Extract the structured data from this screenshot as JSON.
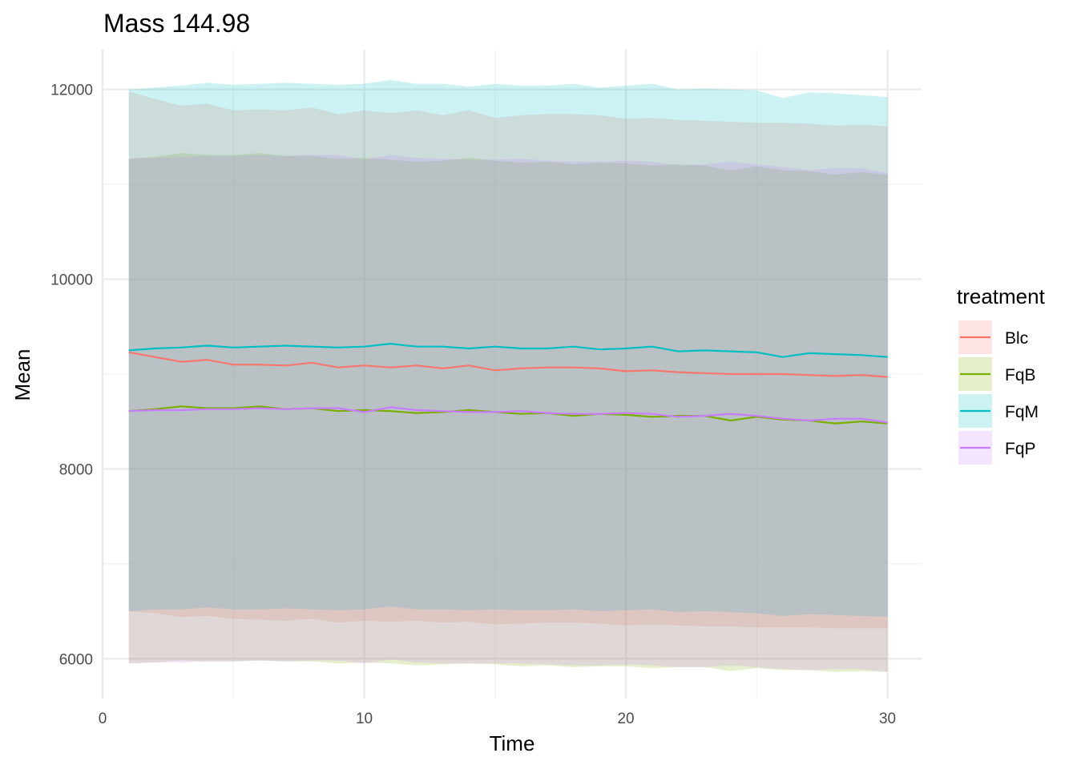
{
  "chart_data": {
    "type": "line",
    "title": "Mass 144.98",
    "xlabel": "Time",
    "ylabel": "Mean",
    "xlim": [
      0,
      31.3
    ],
    "ylim": [
      5580,
      12420
    ],
    "x_ticks": [
      0,
      10,
      20,
      30
    ],
    "y_ticks": [
      6000,
      8000,
      10000,
      12000
    ],
    "grid": true,
    "legend": {
      "title": "treatment",
      "placement": "right"
    },
    "x": [
      1,
      2,
      3,
      4,
      5,
      6,
      7,
      8,
      9,
      10,
      11,
      12,
      13,
      14,
      15,
      16,
      17,
      18,
      19,
      20,
      21,
      22,
      23,
      24,
      25,
      26,
      27,
      28,
      29,
      30
    ],
    "series": [
      {
        "name": "Blc",
        "color": "#f8766d",
        "values": [
          9230,
          9180,
          9130,
          9150,
          9100,
          9100,
          9090,
          9120,
          9070,
          9090,
          9070,
          9090,
          9060,
          9090,
          9040,
          9060,
          9070,
          9070,
          9060,
          9030,
          9040,
          9020,
          9010,
          9000,
          9000,
          9000,
          8990,
          8980,
          8990,
          8970
        ],
        "lower": [
          6500,
          6480,
          6440,
          6450,
          6420,
          6410,
          6400,
          6420,
          6380,
          6400,
          6390,
          6400,
          6380,
          6390,
          6360,
          6370,
          6380,
          6380,
          6370,
          6350,
          6360,
          6350,
          6340,
          6340,
          6330,
          6330,
          6330,
          6320,
          6320,
          6320
        ],
        "upper": [
          11980,
          11900,
          11830,
          11850,
          11780,
          11790,
          11780,
          11810,
          11740,
          11780,
          11750,
          11780,
          11730,
          11780,
          11700,
          11730,
          11740,
          11740,
          11730,
          11690,
          11700,
          11680,
          11670,
          11660,
          11650,
          11650,
          11640,
          11620,
          11630,
          11610
        ]
      },
      {
        "name": "FqB",
        "color": "#7cae00",
        "values": [
          8610,
          8630,
          8660,
          8640,
          8640,
          8660,
          8630,
          8640,
          8610,
          8620,
          8610,
          8590,
          8600,
          8620,
          8600,
          8580,
          8590,
          8560,
          8580,
          8570,
          8550,
          8560,
          8560,
          8510,
          8550,
          8520,
          8510,
          8480,
          8500,
          8480
        ],
        "lower": [
          5950,
          5960,
          5980,
          5970,
          5970,
          5980,
          5970,
          5970,
          5950,
          5960,
          5950,
          5930,
          5940,
          5950,
          5940,
          5920,
          5930,
          5910,
          5920,
          5920,
          5900,
          5910,
          5910,
          5870,
          5900,
          5880,
          5880,
          5860,
          5870,
          5860
        ],
        "upper": [
          11270,
          11290,
          11330,
          11310,
          11310,
          11330,
          11300,
          11300,
          11270,
          11280,
          11260,
          11240,
          11250,
          11280,
          11250,
          11230,
          11240,
          11210,
          11230,
          11220,
          11200,
          11210,
          11200,
          11150,
          11190,
          11150,
          11140,
          11100,
          11130,
          11100
        ]
      },
      {
        "name": "FqM",
        "color": "#00bfc4",
        "values": [
          9250,
          9270,
          9280,
          9300,
          9280,
          9290,
          9300,
          9290,
          9280,
          9290,
          9320,
          9290,
          9290,
          9270,
          9290,
          9270,
          9270,
          9290,
          9260,
          9270,
          9290,
          9240,
          9250,
          9240,
          9230,
          9180,
          9220,
          9210,
          9200,
          9180
        ],
        "lower": [
          6500,
          6520,
          6520,
          6540,
          6520,
          6520,
          6530,
          6520,
          6510,
          6520,
          6550,
          6520,
          6520,
          6510,
          6520,
          6510,
          6510,
          6520,
          6500,
          6510,
          6520,
          6490,
          6500,
          6490,
          6480,
          6450,
          6470,
          6460,
          6450,
          6440
        ],
        "upper": [
          12000,
          12020,
          12040,
          12070,
          12050,
          12060,
          12070,
          12060,
          12050,
          12060,
          12100,
          12060,
          12060,
          12030,
          12060,
          12040,
          12040,
          12060,
          12020,
          12040,
          12060,
          12000,
          12010,
          12000,
          11990,
          11910,
          11970,
          11960,
          11940,
          11920
        ]
      },
      {
        "name": "FqP",
        "color": "#c77cff",
        "values": [
          8610,
          8620,
          8620,
          8630,
          8630,
          8640,
          8630,
          8640,
          8640,
          8600,
          8650,
          8620,
          8610,
          8600,
          8600,
          8610,
          8590,
          8580,
          8580,
          8590,
          8580,
          8550,
          8560,
          8580,
          8560,
          8530,
          8510,
          8530,
          8530,
          8490
        ],
        "lower": [
          5950,
          5960,
          5960,
          5970,
          5970,
          5980,
          5970,
          5980,
          5980,
          5950,
          5990,
          5960,
          5950,
          5950,
          5950,
          5950,
          5940,
          5930,
          5930,
          5940,
          5930,
          5910,
          5910,
          5930,
          5910,
          5890,
          5880,
          5890,
          5890,
          5860
        ],
        "upper": [
          11270,
          11280,
          11290,
          11300,
          11300,
          11310,
          11300,
          11310,
          11310,
          11260,
          11310,
          11280,
          11270,
          11260,
          11260,
          11270,
          11250,
          11240,
          11240,
          11250,
          11240,
          11200,
          11210,
          11240,
          11210,
          11180,
          11150,
          11170,
          11170,
          11120
        ]
      }
    ]
  }
}
